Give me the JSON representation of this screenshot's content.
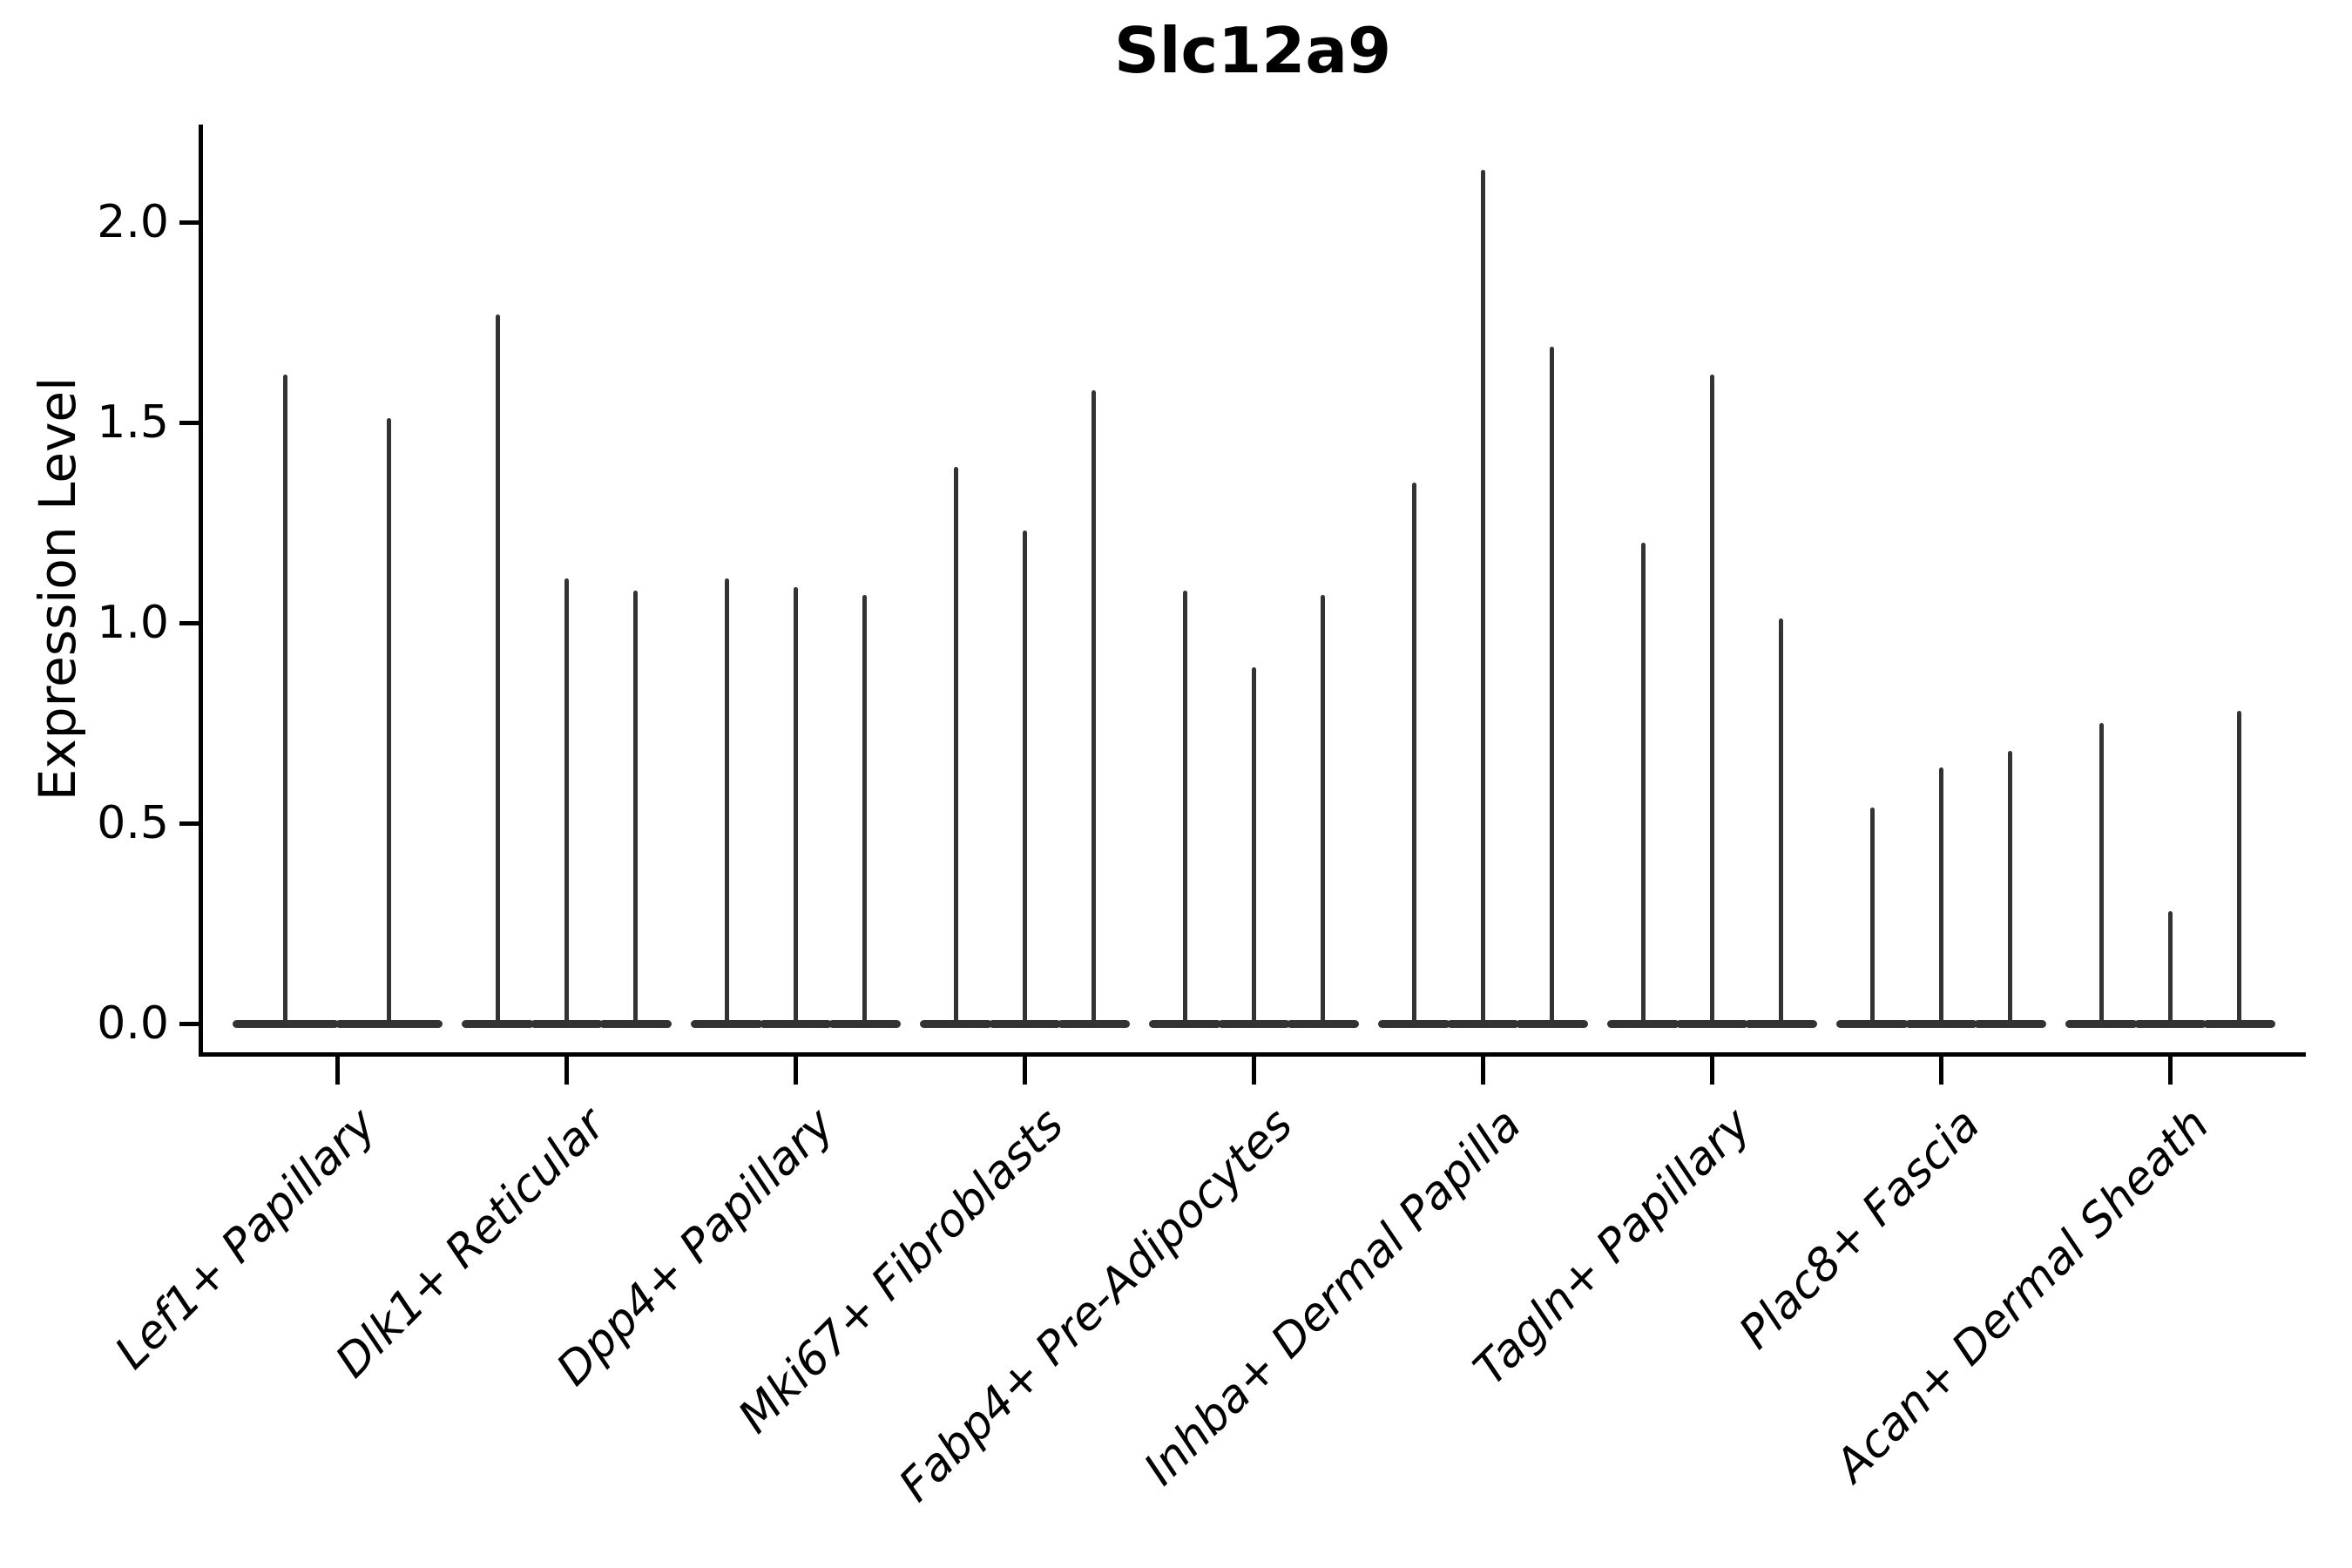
{
  "title": "Slc12a9",
  "ylabel": "Expression Level",
  "colors": {
    "violin_line": "#333333",
    "axis": "#000000",
    "background": "#ffffff"
  },
  "chart_data": {
    "type": "violin",
    "title": "Slc12a9",
    "xlabel": "",
    "ylabel": "Expression Level",
    "ylim": [
      -0.08,
      2.24
    ],
    "yticks": [
      0.0,
      0.5,
      1.0,
      1.5,
      2.0
    ],
    "ytick_labels": [
      "0.0",
      "0.5",
      "1.0",
      "1.5",
      "2.0"
    ],
    "grid": false,
    "legend": false,
    "baseline_value": 0.0,
    "description": "Sparse single-cell expression violins: each violin is a wide flat base at 0 with a thin spike up to its maximum expression value.",
    "categories": [
      "Lef1+ Papillary",
      "Dlk1+ Reticular",
      "Dpp4+ Papillary",
      "Mki67+ Fibroblasts",
      "Fabp4+ Pre-Adipocytes",
      "Inhba+ Dermal Papilla",
      "Tagln+ Papillary",
      "Plac8+ Fascia",
      "Acan+ Dermal Sheath"
    ],
    "groups": [
      {
        "label": "Lef1+ Papillary",
        "violin_max": [
          1.62,
          1.51
        ]
      },
      {
        "label": "Dlk1+ Reticular",
        "violin_max": [
          1.77,
          1.11,
          1.08
        ]
      },
      {
        "label": "Dpp4+ Papillary",
        "violin_max": [
          1.11,
          1.09,
          1.07
        ]
      },
      {
        "label": "Mki67+ Fibroblasts",
        "violin_max": [
          1.39,
          1.23,
          1.58
        ]
      },
      {
        "label": "Fabp4+ Pre-Adipocytes",
        "violin_max": [
          1.08,
          0.89,
          1.07
        ]
      },
      {
        "label": "Inhba+ Dermal Papilla",
        "violin_max": [
          1.35,
          2.13,
          1.69
        ]
      },
      {
        "label": "Tagln+ Papillary",
        "violin_max": [
          1.2,
          1.62,
          1.01
        ]
      },
      {
        "label": "Plac8+ Fascia",
        "violin_max": [
          0.54,
          0.64,
          0.68
        ]
      },
      {
        "label": "Acan+ Dermal Sheath",
        "violin_max": [
          0.75,
          0.28,
          0.78
        ]
      }
    ]
  }
}
